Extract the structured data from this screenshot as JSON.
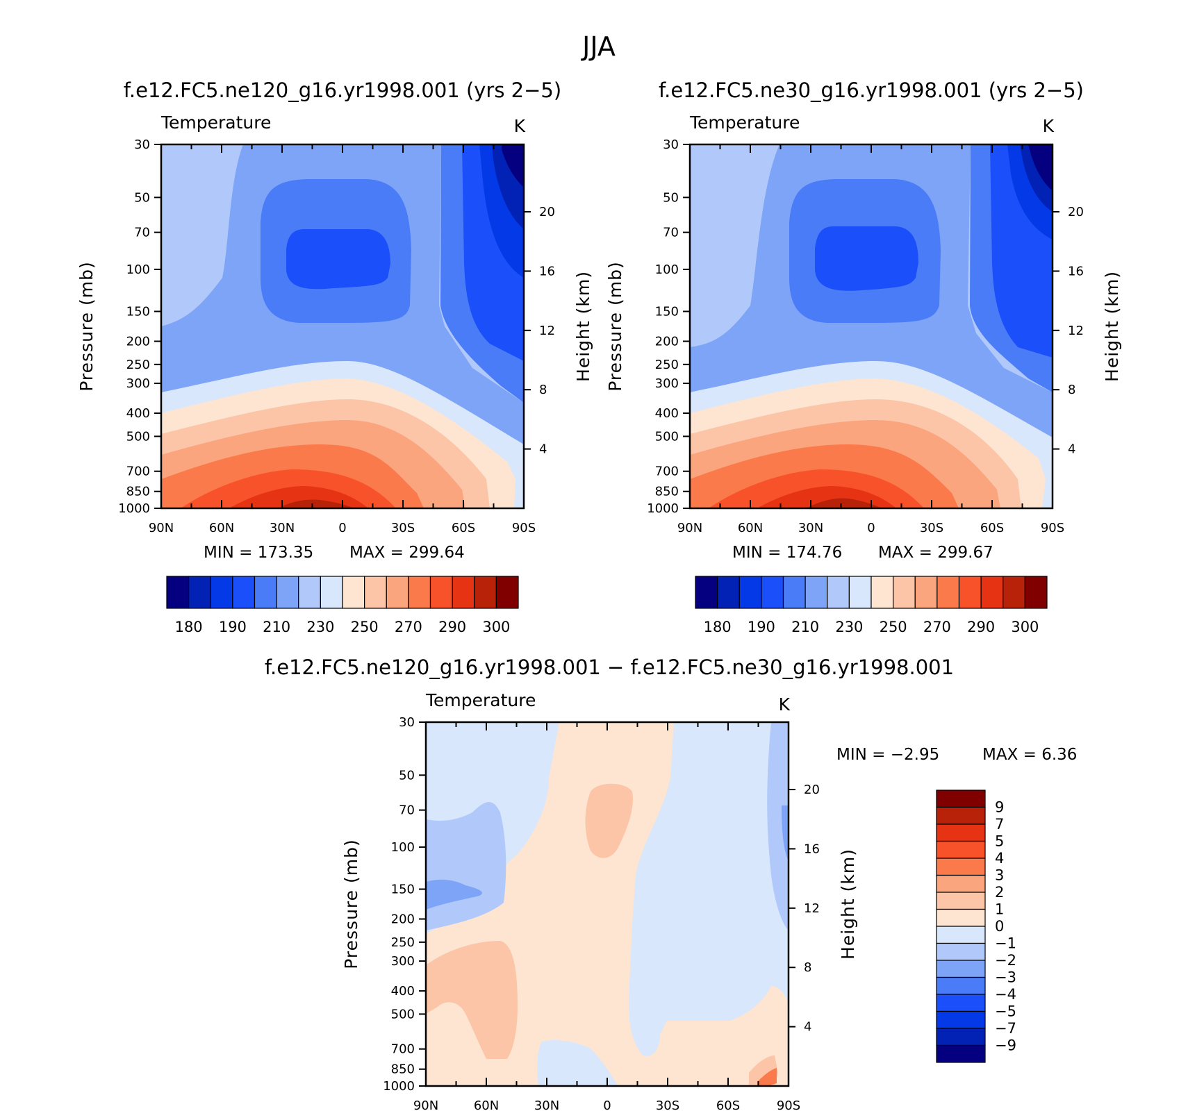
{
  "figure": {
    "title": "JJA"
  },
  "chart_data": [
    {
      "type": "heatmap",
      "title": "f.e12.FC5.ne120_g16.yr1998.001 (yrs 2−5)",
      "variable": "Temperature",
      "units": "K",
      "x_tick_labels": [
        "90N",
        "60N",
        "30N",
        "0",
        "30S",
        "60S",
        "90S"
      ],
      "y_left_label": "Pressure (mb)",
      "y_left_ticks": [
        30,
        50,
        70,
        100,
        150,
        200,
        250,
        300,
        400,
        500,
        700,
        850,
        1000
      ],
      "y_right_label": "Height (km)",
      "y_right_ticks": [
        4,
        8,
        12,
        16,
        20
      ],
      "y_scale": "log",
      "min_text": "MIN = 173.35",
      "max_text": "MAX = 299.64",
      "min": 173.35,
      "max": 299.64,
      "colorbar": {
        "orientation": "horizontal",
        "levels": [
          180,
          185,
          190,
          200,
          210,
          220,
          230,
          240,
          250,
          260,
          270,
          280,
          290,
          295,
          300
        ],
        "tick_labels": [
          "180",
          "190",
          "210",
          "230",
          "250",
          "270",
          "290",
          "300"
        ],
        "colors": [
          "#05007f",
          "#0222b5",
          "#0339e6",
          "#1a4ffa",
          "#4a7cf7",
          "#7ea4f8",
          "#b0c9fa",
          "#d8e7fc",
          "#fde5d2",
          "#fcc5a8",
          "#fba57f",
          "#fa7a4b",
          "#f8522a",
          "#e53313",
          "#b82209",
          "#800000"
        ]
      }
    },
    {
      "type": "heatmap",
      "title": "f.e12.FC5.ne30_g16.yr1998.001 (yrs 2−5)",
      "variable": "Temperature",
      "units": "K",
      "x_tick_labels": [
        "90N",
        "60N",
        "30N",
        "0",
        "30S",
        "60S",
        "90S"
      ],
      "y_left_label": "Pressure (mb)",
      "y_left_ticks": [
        30,
        50,
        70,
        100,
        150,
        200,
        250,
        300,
        400,
        500,
        700,
        850,
        1000
      ],
      "y_right_label": "Height (km)",
      "y_right_ticks": [
        4,
        8,
        12,
        16,
        20
      ],
      "y_scale": "log",
      "min_text": "MIN = 174.76",
      "max_text": "MAX = 299.67",
      "min": 174.76,
      "max": 299.67,
      "colorbar": {
        "orientation": "horizontal",
        "levels": [
          180,
          185,
          190,
          200,
          210,
          220,
          230,
          240,
          250,
          260,
          270,
          280,
          290,
          295,
          300
        ],
        "tick_labels": [
          "180",
          "190",
          "210",
          "230",
          "250",
          "270",
          "290",
          "300"
        ],
        "colors": [
          "#05007f",
          "#0222b5",
          "#0339e6",
          "#1a4ffa",
          "#4a7cf7",
          "#7ea4f8",
          "#b0c9fa",
          "#d8e7fc",
          "#fde5d2",
          "#fcc5a8",
          "#fba57f",
          "#fa7a4b",
          "#f8522a",
          "#e53313",
          "#b82209",
          "#800000"
        ]
      }
    },
    {
      "type": "heatmap",
      "title": "f.e12.FC5.ne120_g16.yr1998.001 − f.e12.FC5.ne30_g16.yr1998.001",
      "variable": "Temperature",
      "units": "K",
      "x_tick_labels": [
        "90N",
        "60N",
        "30N",
        "0",
        "30S",
        "60S",
        "90S"
      ],
      "y_left_label": "Pressure (mb)",
      "y_left_ticks": [
        30,
        50,
        70,
        100,
        150,
        200,
        250,
        300,
        400,
        500,
        700,
        850,
        1000
      ],
      "y_right_label": "Height (km)",
      "y_right_ticks": [
        4,
        8,
        12,
        16,
        20
      ],
      "y_scale": "log",
      "min_text": "MIN = −2.95",
      "max_text": "MAX = 6.36",
      "min": -2.95,
      "max": 6.36,
      "colorbar": {
        "orientation": "vertical",
        "levels": [
          9,
          7,
          5,
          4,
          3,
          2,
          1,
          0,
          -1,
          -2,
          -3,
          -4,
          -5,
          -7,
          -9
        ],
        "tick_labels": [
          "9",
          "7",
          "5",
          "4",
          "3",
          "2",
          "1",
          "0",
          "−1",
          "−2",
          "−3",
          "−4",
          "−5",
          "−7",
          "−9"
        ],
        "colors": [
          "#800000",
          "#b82209",
          "#e53313",
          "#f8522a",
          "#fa7a4b",
          "#fba57f",
          "#fcc5a8",
          "#fde5d2",
          "#d8e7fc",
          "#b0c9fa",
          "#7ea4f8",
          "#4a7cf7",
          "#1a4ffa",
          "#0339e6",
          "#0222b5",
          "#05007f"
        ]
      }
    }
  ]
}
